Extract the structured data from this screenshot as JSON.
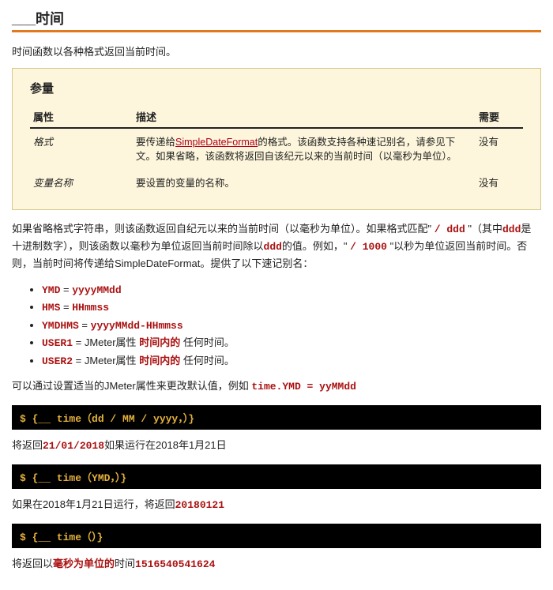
{
  "title": {
    "prefix": "___",
    "text": "时间"
  },
  "intro": "时间函数以各种格式返回当前时间。",
  "params": {
    "heading": "参量",
    "cols": [
      "属性",
      "描述",
      "需要"
    ],
    "rows": [
      {
        "attr": "格式",
        "desc_pre": "要传递给",
        "desc_link": "SimpleDateFormat",
        "desc_post": "的格式。该函数支持各种速记别名，请参见下文。如果省略，该函数将返回自该纪元以来的当前时间（以毫秒为单位）。",
        "req": "没有"
      },
      {
        "attr": "变量名称",
        "desc_pre": "要设置的变量的名称。",
        "desc_link": "",
        "desc_post": "",
        "req": "没有"
      }
    ]
  },
  "p1": {
    "a": "如果省略格式字符串，则该函数返回自纪元以来的当前时间（以毫秒为单位）。如果格式匹配\" ",
    "b": "/ ddd",
    "c": " \"（其中",
    "d": "ddd",
    "e": "是十进制数字），则该函数以毫秒为单位返回当前时间除以",
    "f": "ddd",
    "g": "的值。例如，\" ",
    "h": "/ 1000",
    "i": " \"以秒为单位返回当前时间。否则，当前时间将传递给SimpleDateFormat。提供了以下速记别名："
  },
  "aliases": [
    {
      "k": "YMD",
      "sep": " = ",
      "v": "yyyyMMdd",
      "tail": ""
    },
    {
      "k": "HMS",
      "sep": " = ",
      "v": "HHmmss",
      "tail": ""
    },
    {
      "k": "YMDHMS",
      "sep": " = ",
      "v": "yyyyMMdd-HHmmss",
      "tail": ""
    },
    {
      "k": "USER1",
      "sep": " = JMeter属性 ",
      "v": "时间内的",
      "tail": " 任何时间。"
    },
    {
      "k": "USER2",
      "sep": " = JMeter属性 ",
      "v": "时间内的",
      "tail": " 任何时间。"
    }
  ],
  "p2": {
    "a": "可以通过设置适当的JMeter属性来更改默认值，例如 ",
    "b": "time.YMD = yyMMdd"
  },
  "codes": [
    "$ {__ time（dd / MM / yyyy，）}",
    "$ {__ time（YMD，）}",
    "$ {__ time（）}"
  ],
  "after1": {
    "a": "将返回",
    "b": "21/01/2018",
    "c": "如果运行在2018年1月21日"
  },
  "after2": {
    "a": "如果在2018年1月21日运行，将返回",
    "b": "20180121"
  },
  "after3": {
    "a": "将返回以",
    "b": "毫秒为单位的",
    "c": "时间",
    "d": "1516540541624"
  },
  "colors": {
    "accent": "#a11",
    "link": "#b00020",
    "border": "#e07a1e",
    "box_bg": "#fdf6dc",
    "code_bg": "#000",
    "code_fg": "#e6b23c"
  }
}
